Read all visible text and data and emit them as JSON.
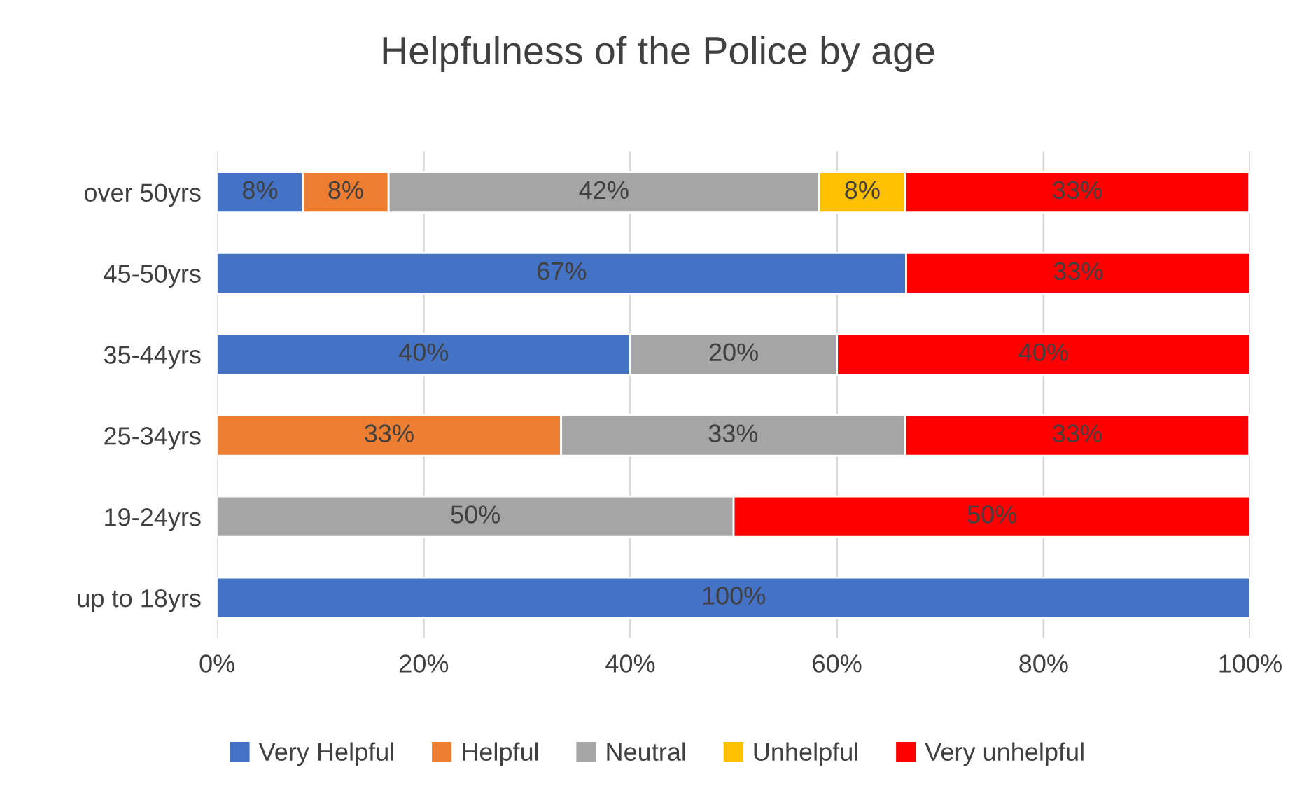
{
  "chart_data": {
    "type": "bar",
    "orientation": "horizontal",
    "stacked": true,
    "title": "Helpfulness of the Police by age",
    "categories": [
      "over 50yrs",
      "45-50yrs",
      "35-44yrs",
      "25-34yrs",
      "19-24yrs",
      "up to 18yrs"
    ],
    "series": [
      {
        "name": "Very Helpful",
        "color": "#4472c4",
        "values": [
          8.3,
          66.7,
          40,
          null,
          null,
          100
        ],
        "value_labels": [
          "8%",
          "67%",
          "40%",
          null,
          null,
          "100%"
        ]
      },
      {
        "name": "Helpful",
        "color": "#ed7d31",
        "values": [
          8.3,
          null,
          null,
          33.3,
          null,
          null
        ],
        "value_labels": [
          "8%",
          null,
          null,
          "33%",
          null,
          null
        ]
      },
      {
        "name": "Neutral",
        "color": "#a5a5a5",
        "values": [
          41.7,
          null,
          20,
          33.3,
          50,
          null
        ],
        "value_labels": [
          "42%",
          null,
          "20%",
          "33%",
          "50%",
          null
        ]
      },
      {
        "name": "Unhelpful",
        "color": "#ffc000",
        "values": [
          8.3,
          null,
          null,
          null,
          null,
          null
        ],
        "value_labels": [
          "8%",
          null,
          null,
          null,
          null,
          null
        ]
      },
      {
        "name": "Very unhelpful",
        "color": "#ff0000",
        "values": [
          33.3,
          33.3,
          40,
          33.3,
          50,
          null
        ],
        "value_labels": [
          "33%",
          "33%",
          "40%",
          "33%",
          "50%",
          null
        ]
      }
    ],
    "xlim": [
      0,
      100
    ],
    "xticks": [
      {
        "value": 0,
        "label": "0%"
      },
      {
        "value": 20,
        "label": "20%"
      },
      {
        "value": 40,
        "label": "40%"
      },
      {
        "value": 60,
        "label": "60%"
      },
      {
        "value": 80,
        "label": "80%"
      },
      {
        "value": 100,
        "label": "100%"
      }
    ],
    "grid": "x",
    "legend": "bottom"
  }
}
